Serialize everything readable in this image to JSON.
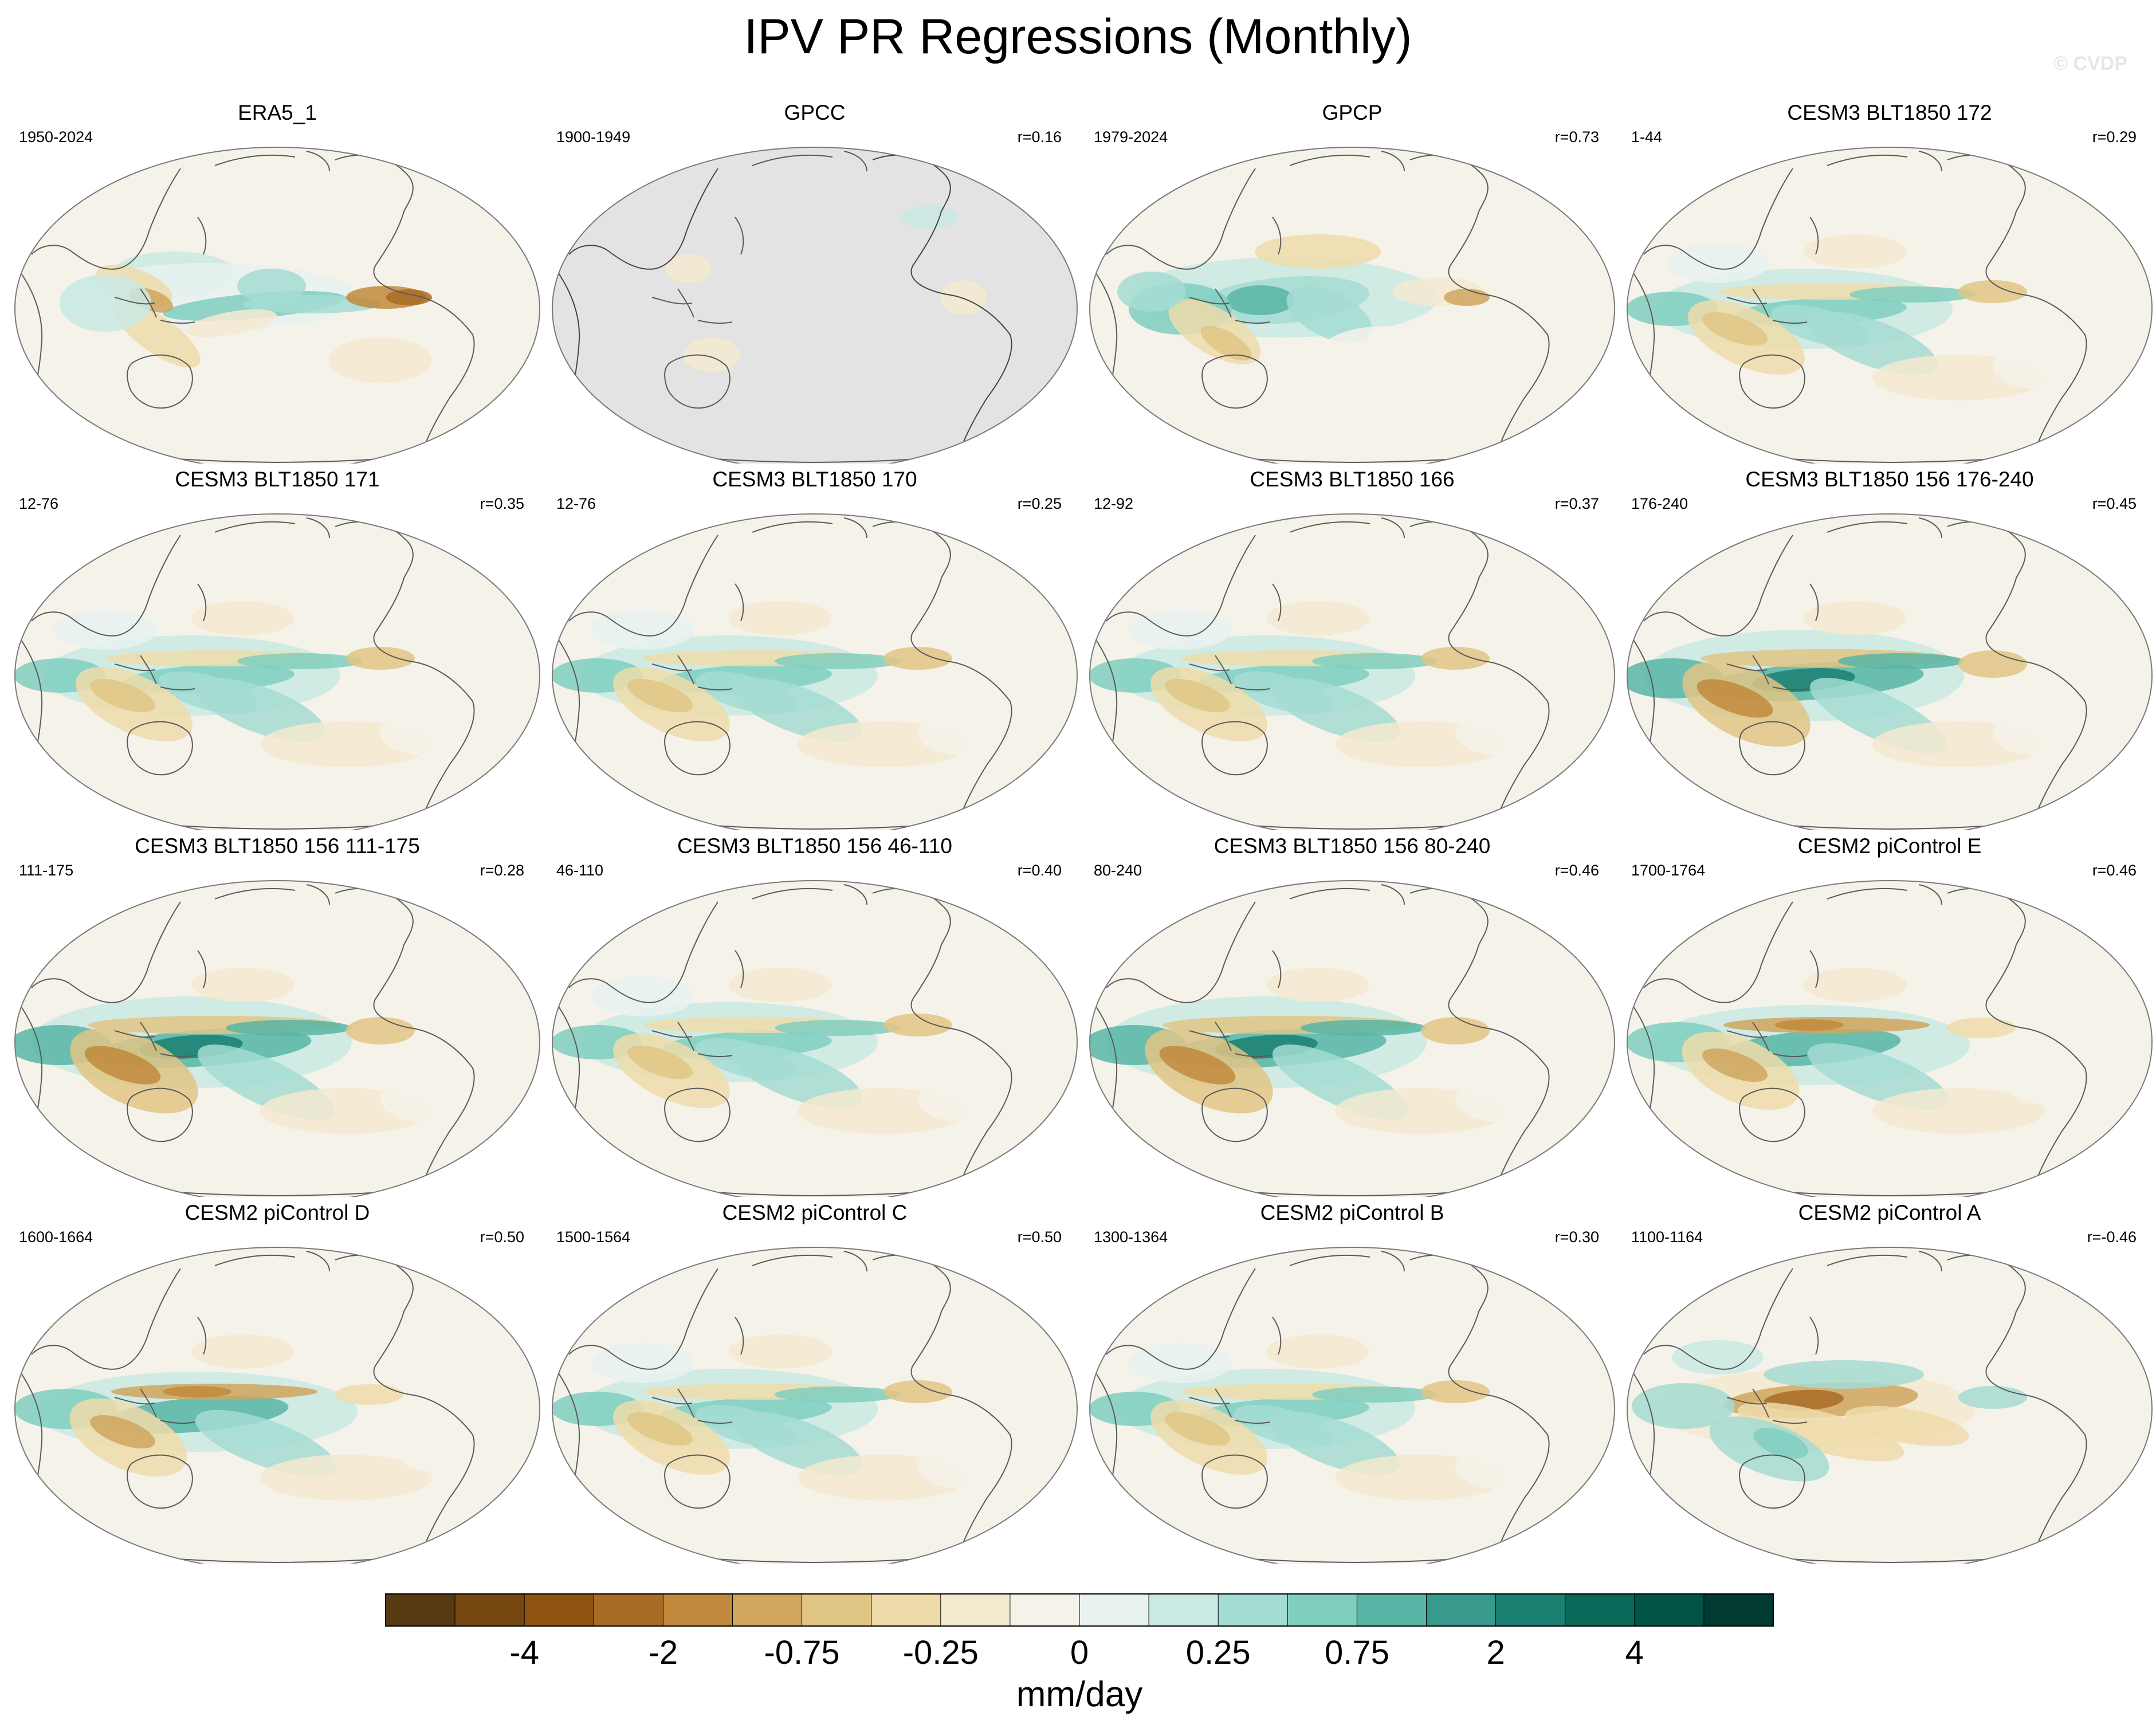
{
  "title": "IPV PR Regressions (Monthly)",
  "watermark": "© CVDP",
  "colors": {
    "ocean": "#f5f2ea",
    "no_data": "#e3e3e3",
    "coast": "#5a5a5a",
    "frame": "#7a7a7a"
  },
  "colorbar": {
    "units": "mm/day",
    "colors": [
      "#583a12",
      "#774712",
      "#8f5312",
      "#a86c26",
      "#c18a3c",
      "#d0a65e",
      "#e1c585",
      "#efdcaa",
      "#f4ead0",
      "#f5f2ea",
      "#e8f2f0",
      "#c9e9e3",
      "#a4dcd2",
      "#7fcfbf",
      "#58b6a6",
      "#379a8c",
      "#1b8072",
      "#086958",
      "#015446",
      "#003a31"
    ],
    "ticks": [
      {
        "label": "-4",
        "index": 2
      },
      {
        "label": "-2",
        "index": 4
      },
      {
        "label": "-0.75",
        "index": 6
      },
      {
        "label": "-0.25",
        "index": 8
      },
      {
        "label": "0",
        "index": 10
      },
      {
        "label": "0.25",
        "index": 12
      },
      {
        "label": "0.75",
        "index": 14
      },
      {
        "label": "2",
        "index": 16
      },
      {
        "label": "4",
        "index": 18
      }
    ]
  },
  "panels": [
    {
      "title": "ERA5_1",
      "period": "1950-2024",
      "corr": "",
      "style": "era5"
    },
    {
      "title": "GPCC",
      "period": "1900-1949",
      "corr": "r=0.16",
      "style": "land"
    },
    {
      "title": "GPCP",
      "period": "1979-2024",
      "corr": "r=0.73",
      "style": "gpcp"
    },
    {
      "title": "CESM3 BLT1850 172",
      "period": "1-44",
      "corr": "r=0.29",
      "style": "model"
    },
    {
      "title": "CESM3 BLT1850 171",
      "period": "12-76",
      "corr": "r=0.35",
      "style": "model"
    },
    {
      "title": "CESM3 BLT1850 170",
      "period": "12-76",
      "corr": "r=0.25",
      "style": "model"
    },
    {
      "title": "CESM3 BLT1850 166",
      "period": "12-92",
      "corr": "r=0.37",
      "style": "model"
    },
    {
      "title": "CESM3 BLT1850 156 176-240",
      "period": "176-240",
      "corr": "r=0.45",
      "style": "strong"
    },
    {
      "title": "CESM3 BLT1850 156 111-175",
      "period": "111-175",
      "corr": "r=0.28",
      "style": "strong"
    },
    {
      "title": "CESM3 BLT1850 156 46-110",
      "period": "46-110",
      "corr": "r=0.40",
      "style": "model"
    },
    {
      "title": "CESM3 BLT1850 156 80-240",
      "period": "80-240",
      "corr": "r=0.46",
      "style": "strong"
    },
    {
      "title": "CESM2 piControl E",
      "period": "1700-1764",
      "corr": "r=0.46",
      "style": "cesm2"
    },
    {
      "title": "CESM2 piControl D",
      "period": "1600-1664",
      "corr": "r=0.50",
      "style": "cesm2"
    },
    {
      "title": "CESM2 piControl C",
      "period": "1500-1564",
      "corr": "r=0.50",
      "style": "model"
    },
    {
      "title": "CESM2 piControl B",
      "period": "1300-1364",
      "corr": "r=0.30",
      "style": "model"
    },
    {
      "title": "CESM2 piControl A",
      "period": "1100-1164",
      "corr": "r=-0.46",
      "style": "negative"
    }
  ]
}
